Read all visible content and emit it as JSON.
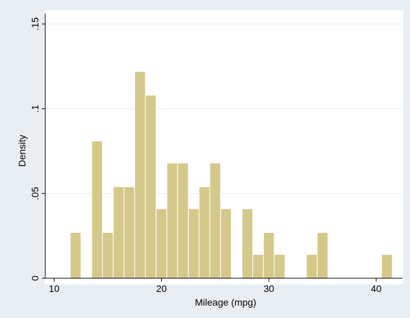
{
  "colors": {
    "outer_background": "#e8eef2",
    "plot_background": "#ffffff",
    "bar_fill": "#d4c98a",
    "bar_stroke": "#ffffff",
    "grid": "#e9eef1",
    "axis": "#000000"
  },
  "chart_data": {
    "type": "bar",
    "title": "",
    "xlabel": "Mileage (mpg)",
    "ylabel": "Density",
    "xlim": [
      10,
      42
    ],
    "ylim": [
      0,
      0.15
    ],
    "grid": true,
    "x_ticks": [
      {
        "value": 10,
        "label": "10"
      },
      {
        "value": 20,
        "label": "20"
      },
      {
        "value": 30,
        "label": "30"
      },
      {
        "value": 40,
        "label": "40"
      }
    ],
    "y_ticks": [
      {
        "value": 0,
        "label": "0"
      },
      {
        "value": 0.05,
        "label": ".05"
      },
      {
        "value": 0.1,
        "label": ".1"
      },
      {
        "value": 0.15,
        "label": ".15"
      }
    ],
    "bins": [
      {
        "x0": 11.5,
        "x1": 12.5,
        "density": 0.027
      },
      {
        "x0": 13.5,
        "x1": 14.5,
        "density": 0.081
      },
      {
        "x0": 14.5,
        "x1": 15.5,
        "density": 0.027
      },
      {
        "x0": 15.5,
        "x1": 16.5,
        "density": 0.054
      },
      {
        "x0": 16.5,
        "x1": 17.5,
        "density": 0.054
      },
      {
        "x0": 17.5,
        "x1": 18.5,
        "density": 0.122
      },
      {
        "x0": 18.5,
        "x1": 19.5,
        "density": 0.108
      },
      {
        "x0": 19.5,
        "x1": 20.5,
        "density": 0.041
      },
      {
        "x0": 20.5,
        "x1": 21.5,
        "density": 0.068
      },
      {
        "x0": 21.5,
        "x1": 22.5,
        "density": 0.068
      },
      {
        "x0": 22.5,
        "x1": 23.5,
        "density": 0.041
      },
      {
        "x0": 23.5,
        "x1": 24.5,
        "density": 0.054
      },
      {
        "x0": 24.5,
        "x1": 25.5,
        "density": 0.068
      },
      {
        "x0": 25.5,
        "x1": 26.5,
        "density": 0.041
      },
      {
        "x0": 27.5,
        "x1": 28.5,
        "density": 0.041
      },
      {
        "x0": 28.5,
        "x1": 29.5,
        "density": 0.014
      },
      {
        "x0": 29.5,
        "x1": 30.5,
        "density": 0.027
      },
      {
        "x0": 30.5,
        "x1": 31.5,
        "density": 0.014
      },
      {
        "x0": 33.5,
        "x1": 34.5,
        "density": 0.014
      },
      {
        "x0": 34.5,
        "x1": 35.5,
        "density": 0.027
      },
      {
        "x0": 40.5,
        "x1": 41.5,
        "density": 0.014
      }
    ]
  }
}
